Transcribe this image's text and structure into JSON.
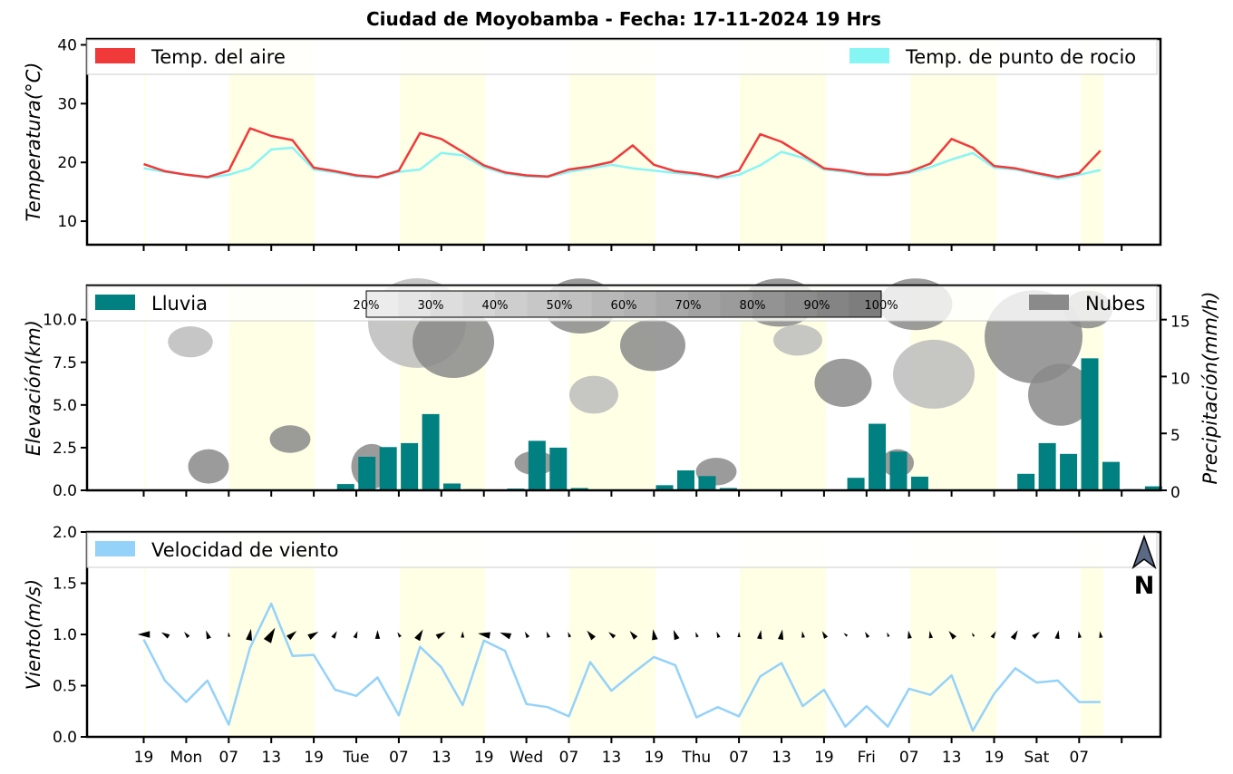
{
  "page": {
    "title": "Ciudad de Moyobamba   -   Fecha: 17-11-2024 19 Hrs"
  },
  "colors": {
    "air": "#f03a3a",
    "dew": "#88f5f5",
    "rain": "#008080",
    "wind": "#94d2fa",
    "clouds": "#8a8a8a",
    "daylight": "#ffffe5"
  },
  "legends": {
    "temp_air": "Temp. del aire",
    "temp_dew": "Temp. de punto de rocio",
    "rain": "Lluvia",
    "clouds": "Nubes",
    "wind": "Velocidad de viento"
  },
  "colorbar": {
    "labels": [
      "20%",
      "30%",
      "40%",
      "50%",
      "60%",
      "70%",
      "80%",
      "90%",
      "100%"
    ]
  },
  "north_label": "N",
  "chart_data": [
    {
      "type": "line",
      "name": "temperature",
      "ylabel": "Temperatura(°C)",
      "ylim": [
        6,
        41
      ],
      "yticks": [
        10,
        20,
        30,
        40
      ],
      "x_step_hours": 3,
      "series": [
        {
          "name": "Temp. del aire",
          "values": [
            19.7,
            18.5,
            17.9,
            17.5,
            18.6,
            25.8,
            24.5,
            23.8,
            19.1,
            18.5,
            17.8,
            17.5,
            18.6,
            25.0,
            24.0,
            21.8,
            19.5,
            18.3,
            17.8,
            17.6,
            18.8,
            19.3,
            20.1,
            22.9,
            19.6,
            18.5,
            18.1,
            17.5,
            18.6,
            24.8,
            23.5,
            21.3,
            19.0,
            18.6,
            18.0,
            17.9,
            18.4,
            19.8,
            24.0,
            22.5,
            19.4,
            19.0,
            18.2,
            17.5,
            18.2,
            22.0
          ]
        },
        {
          "name": "Temp. de punto de rocio",
          "values": [
            19.0,
            18.4,
            17.9,
            17.4,
            17.9,
            19.0,
            22.2,
            22.5,
            18.8,
            18.3,
            17.6,
            17.4,
            18.4,
            18.8,
            21.6,
            21.2,
            19.2,
            18.1,
            17.6,
            17.5,
            18.4,
            19.0,
            19.6,
            19.0,
            18.6,
            18.2,
            17.9,
            17.3,
            17.9,
            19.5,
            21.8,
            20.8,
            18.8,
            18.4,
            17.8,
            17.8,
            18.2,
            19.2,
            20.5,
            21.6,
            19.1,
            18.8,
            18.0,
            17.2,
            17.9,
            18.7
          ]
        }
      ]
    },
    {
      "type": "bar",
      "name": "precipitation",
      "ylabel": "Elevación(km)",
      "ylim": [
        0,
        12
      ],
      "yticks": [
        0.0,
        2.5,
        5.0,
        7.5,
        10.0
      ],
      "y2label": "Precipitación(mm/h)",
      "y2lim": [
        0,
        18
      ],
      "y2ticks": [
        0,
        5,
        10,
        15
      ],
      "series": [
        {
          "name": "Lluvia",
          "values": [
            0,
            0,
            0,
            0,
            0,
            0.55,
            2.95,
            3.8,
            4.15,
            6.7,
            0.6,
            0.1,
            0.05,
            0.15,
            4.35,
            3.75,
            0.2,
            0,
            0,
            0,
            0.45,
            1.75,
            1.25,
            0.2,
            0.05,
            0,
            0,
            0,
            0,
            1.1,
            5.85,
            3.4,
            1.2,
            0,
            0,
            0,
            0.05,
            1.45,
            4.15,
            3.2,
            11.6,
            2.5,
            0.1,
            0.35
          ]
        }
      ]
    },
    {
      "type": "line",
      "name": "wind",
      "ylabel": "Viento(m/s)",
      "ylim": [
        0,
        2
      ],
      "yticks": [
        0.0,
        0.5,
        1.0,
        1.5,
        2.0
      ],
      "xlabels": [
        "19",
        "Mon",
        "07",
        "13",
        "19",
        "Tue",
        "07",
        "13",
        "19",
        "Wed",
        "07",
        "13",
        "19",
        "Thu",
        "07",
        "13",
        "19",
        "Fri",
        "07",
        "13",
        "19",
        "Sat",
        "07"
      ],
      "series": [
        {
          "name": "Velocidad de viento",
          "values": [
            0.95,
            0.55,
            0.34,
            0.55,
            0.12,
            0.87,
            1.3,
            0.79,
            0.8,
            0.46,
            0.4,
            0.58,
            0.21,
            0.88,
            0.68,
            0.31,
            0.94,
            0.84,
            0.32,
            0.29,
            0.2,
            0.73,
            0.45,
            0.62,
            0.78,
            0.7,
            0.19,
            0.29,
            0.2,
            0.59,
            0.72,
            0.3,
            0.46,
            0.1,
            0.3,
            0.1,
            0.47,
            0.41,
            0.6,
            0.06,
            0.42,
            0.67,
            0.53,
            0.55,
            0.34,
            0.34
          ]
        }
      ]
    }
  ]
}
